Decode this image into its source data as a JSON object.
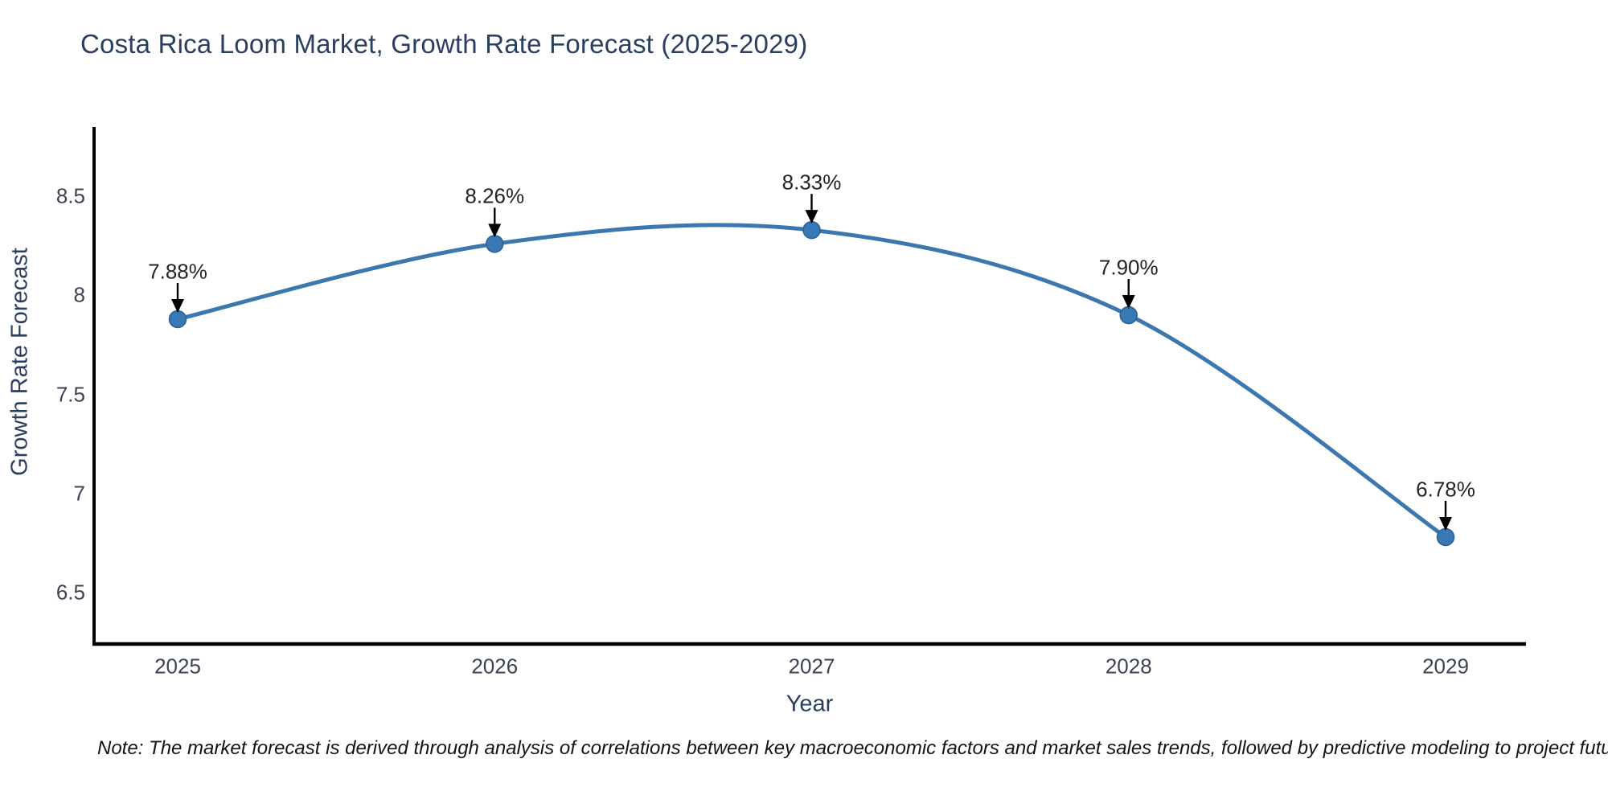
{
  "header": {
    "title": "Costa Rica Loom Market, Growth Rate Forecast (2025-2029)"
  },
  "footnote": "Note: The market forecast is derived through analysis of correlations between key macroeconomic factors and market sales trends, followed by predictive modeling to project future sales",
  "chart_data": {
    "type": "line",
    "title": "Costa Rica Loom Market, Growth Rate Forecast (2025-2029)",
    "categories": [
      "2025",
      "2026",
      "2027",
      "2028",
      "2029"
    ],
    "values": [
      7.88,
      8.26,
      8.33,
      7.9,
      6.78
    ],
    "point_labels": [
      "7.88%",
      "8.26%",
      "8.33%",
      "7.90%",
      "6.78%"
    ],
    "xlabel": "Year",
    "ylabel": "Growth Rate Forecast",
    "ylim": [
      6.24,
      8.85
    ],
    "yticks": {
      "values": [
        6.5,
        7,
        7.5,
        8,
        8.5
      ],
      "labels": [
        "6.5",
        "7",
        "7.5",
        "8",
        "8.5"
      ]
    },
    "grid": false,
    "legend": false,
    "line_shape": "spline",
    "annotation_style": "value-above-with-down-arrow",
    "colors": {
      "line": "#3d77b0",
      "marker": "#3878b4",
      "marker_edge": "#2c5f94",
      "axis": "#000000",
      "arrow": "#000000",
      "title_text": "#2a3f5f",
      "tick_text": "#3c4453",
      "annotation_text": "#242424"
    }
  }
}
